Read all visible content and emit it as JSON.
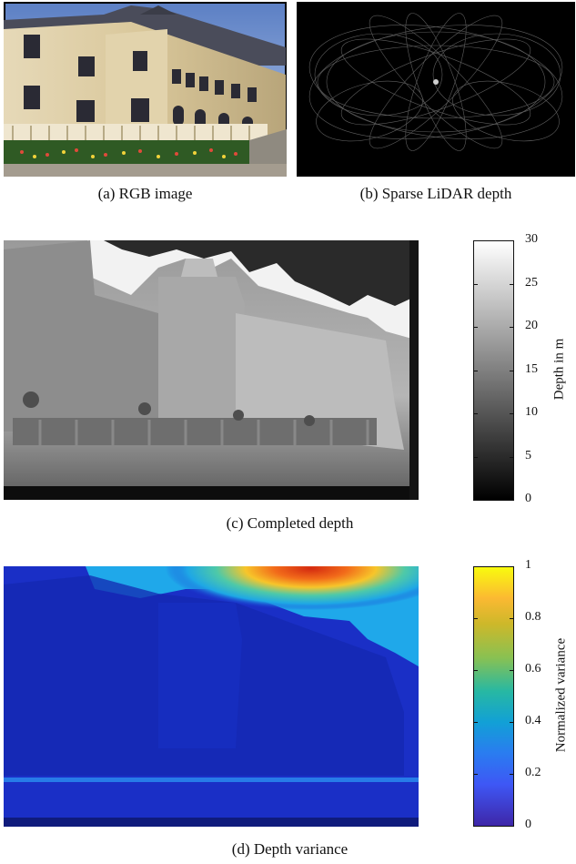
{
  "figure": {
    "panel_a": {
      "caption": "(a) RGB image"
    },
    "panel_b": {
      "caption": "(b) Sparse LiDAR depth"
    },
    "panel_c": {
      "caption": "(c) Completed depth"
    },
    "panel_d": {
      "caption": "(d) Depth variance"
    },
    "colorbar_depth": {
      "label": "Depth in m",
      "ticks": [
        "30",
        "25",
        "20",
        "15",
        "10",
        "5",
        "0"
      ],
      "range": [
        0,
        30
      ],
      "colormap": "gray"
    },
    "colorbar_variance": {
      "label": "Normalized variance",
      "ticks": [
        "1",
        "0.8",
        "0.6",
        "0.4",
        "0.2",
        "0"
      ],
      "range": [
        0,
        1
      ],
      "colormap": "parula"
    }
  }
}
